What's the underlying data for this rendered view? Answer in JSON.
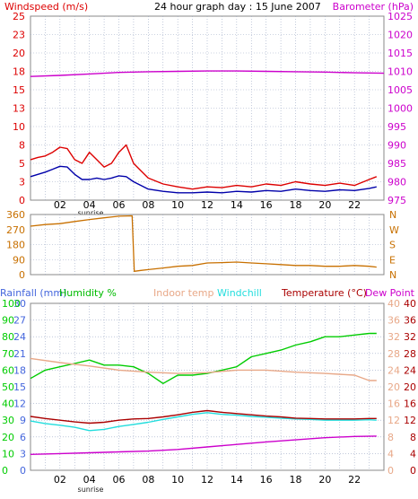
{
  "header": {
    "left_label": "Windspeed (m/s)",
    "title": "24 hour graph day : 15 June 2007",
    "right_label": "Barometer (hPa)"
  },
  "bottom_header": {
    "rainfall_label": "Rainfall (mm)",
    "humidity_label": "Humidity %",
    "indoor_label": "Indoor temp",
    "windchill_label": "Windchill",
    "temperature_label": "Temperature (°C)",
    "dewpoint_label": "Dew Point"
  },
  "sunrise_label": "sunrise",
  "colors": {
    "windspeed": "#dd0000",
    "wind_avg": "#0000aa",
    "barometer": "#cc00cc",
    "direction": "#c87000",
    "humidity": "#00cc00",
    "indoor": "#e8a888",
    "windchill": "#22dddd",
    "temperature": "#aa0000",
    "dewpoint": "#cc00cc",
    "rainfall": "#4466dd",
    "grid": "#9aa7c4"
  },
  "chart_data": [
    {
      "type": "line",
      "title": "24 hour graph day : 15 June 2007",
      "xlabel": "",
      "x_ticks": [
        "02",
        "04",
        "06",
        "08",
        "10",
        "12",
        "14",
        "16",
        "18",
        "20",
        "22"
      ],
      "xlim": [
        0,
        24
      ],
      "ylabel": "Windspeed (m/s)",
      "ylim": [
        0,
        25
      ],
      "y_ticks": [
        0,
        3,
        5,
        8,
        10,
        13,
        15,
        18,
        20,
        23,
        25
      ],
      "y2label": "Barometer (hPa)",
      "y2lim": [
        975,
        1025
      ],
      "y2_ticks": [
        975,
        980,
        985,
        990,
        995,
        1000,
        1005,
        1010,
        1015,
        1020,
        1025
      ],
      "series": [
        {
          "name": "Windspeed",
          "axis": "left",
          "x": [
            0,
            0.5,
            1,
            1.5,
            2,
            2.5,
            3,
            3.5,
            4,
            4.5,
            5,
            5.5,
            6,
            6.5,
            7,
            7.5,
            8,
            9,
            10,
            11,
            12,
            13,
            14,
            15,
            16,
            17,
            18,
            19,
            20,
            21,
            22,
            23,
            23.5
          ],
          "values": [
            5.5,
            5.8,
            6.0,
            6.5,
            7.2,
            7.0,
            5.5,
            5.0,
            6.5,
            5.5,
            4.5,
            5.0,
            6.5,
            7.5,
            5.0,
            4.0,
            3.0,
            2.2,
            1.8,
            1.5,
            1.8,
            1.7,
            2.0,
            1.8,
            2.2,
            2.0,
            2.5,
            2.2,
            2.0,
            2.3,
            2.0,
            2.8,
            3.2
          ]
        },
        {
          "name": "Wind average",
          "axis": "left",
          "x": [
            0,
            0.5,
            1,
            1.5,
            2,
            2.5,
            3,
            3.5,
            4,
            4.5,
            5,
            5.5,
            6,
            6.5,
            7,
            7.5,
            8,
            9,
            10,
            11,
            12,
            13,
            14,
            15,
            16,
            17,
            18,
            19,
            20,
            21,
            22,
            23,
            23.5
          ],
          "values": [
            3.2,
            3.5,
            3.8,
            4.2,
            4.6,
            4.5,
            3.5,
            2.8,
            2.8,
            3.0,
            2.8,
            3.0,
            3.3,
            3.2,
            2.5,
            2.0,
            1.5,
            1.2,
            1.0,
            1.0,
            1.1,
            1.0,
            1.2,
            1.1,
            1.3,
            1.2,
            1.5,
            1.3,
            1.2,
            1.4,
            1.3,
            1.6,
            1.8
          ]
        },
        {
          "name": "Barometer",
          "axis": "right",
          "x": [
            0,
            2,
            4,
            6,
            8,
            10,
            12,
            14,
            16,
            18,
            20,
            22,
            24
          ],
          "values": [
            1008.6,
            1008.9,
            1009.3,
            1009.7,
            1009.9,
            1010.0,
            1010.1,
            1010.1,
            1010.0,
            1009.9,
            1009.8,
            1009.6,
            1009.5
          ]
        }
      ]
    },
    {
      "type": "line",
      "xlim": [
        0,
        24
      ],
      "ylim": [
        0,
        360
      ],
      "y_ticks": [
        0,
        90,
        180,
        270,
        360
      ],
      "y2_ticks": [
        "N",
        "E",
        "S",
        "W",
        "N"
      ],
      "series": [
        {
          "name": "Wind direction",
          "x": [
            0,
            1,
            2,
            3,
            4,
            5,
            6,
            6.9,
            7.05,
            7.5,
            8,
            9,
            10,
            11,
            12,
            13,
            14,
            15,
            16,
            17,
            18,
            19,
            20,
            21,
            22,
            23,
            23.5
          ],
          "values": [
            290,
            300,
            305,
            318,
            330,
            340,
            350,
            352,
            20,
            25,
            30,
            40,
            50,
            55,
            70,
            72,
            75,
            70,
            65,
            60,
            55,
            55,
            50,
            50,
            55,
            50,
            45
          ]
        }
      ]
    },
    {
      "type": "line",
      "xlim": [
        0,
        24
      ],
      "y_left1_label": "Rainfall (mm)",
      "y_left1_ticks": [
        0,
        3,
        6,
        9,
        12,
        15,
        18,
        21,
        24,
        27,
        30
      ],
      "y_left1_lim": [
        0,
        30
      ],
      "y_left2_label": "Humidity %",
      "y_left2_ticks": [
        0,
        10,
        20,
        30,
        40,
        50,
        60,
        70,
        80,
        90,
        100
      ],
      "y_left2_lim": [
        0,
        100
      ],
      "y_right1_ticks": [
        0,
        4,
        8,
        12,
        16,
        20,
        24,
        28,
        32,
        36,
        40
      ],
      "y_right1_lim": [
        0,
        40
      ],
      "y_right2_ticks": [
        0,
        4,
        8,
        12,
        16,
        20,
        24,
        28,
        32,
        36,
        40
      ],
      "y_right2_lim": [
        0,
        40
      ],
      "series": [
        {
          "name": "Humidity %",
          "axis": "humidity",
          "x": [
            0,
            1,
            2,
            3,
            4,
            5,
            6,
            7,
            8,
            9,
            10,
            11,
            12,
            13,
            14,
            15,
            16,
            17,
            18,
            19,
            20,
            21,
            22,
            23,
            23.5
          ],
          "values": [
            55,
            60,
            62,
            64,
            66,
            63,
            63,
            62,
            58,
            52,
            57,
            57,
            58,
            60,
            62,
            68,
            70,
            72,
            75,
            77,
            80,
            80,
            81,
            82,
            82
          ]
        },
        {
          "name": "Indoor temp",
          "axis": "temp",
          "x": [
            0,
            2,
            4,
            6,
            8,
            10,
            12,
            14,
            16,
            18,
            20,
            22,
            23,
            23.5
          ],
          "values": [
            26.8,
            25.8,
            25.0,
            24.0,
            23.5,
            23.2,
            23.4,
            24.0,
            24.0,
            23.5,
            23.2,
            22.8,
            21.5,
            21.5
          ]
        },
        {
          "name": "Windchill",
          "axis": "temp",
          "x": [
            0,
            1,
            2,
            3,
            4,
            5,
            6,
            7,
            8,
            9,
            10,
            11,
            12,
            13,
            14,
            15,
            16,
            17,
            18,
            19,
            20,
            21,
            22,
            23,
            23.5
          ],
          "values": [
            11.8,
            11.2,
            10.8,
            10.3,
            9.5,
            9.8,
            10.5,
            11.0,
            11.5,
            12.2,
            12.8,
            13.4,
            13.8,
            13.4,
            13.2,
            12.9,
            12.7,
            12.5,
            12.3,
            12.2,
            12.0,
            12.0,
            12.0,
            12.1,
            12.0
          ]
        },
        {
          "name": "Temperature",
          "axis": "temp",
          "x": [
            0,
            1,
            2,
            3,
            4,
            5,
            6,
            7,
            8,
            9,
            10,
            11,
            12,
            13,
            14,
            15,
            16,
            17,
            18,
            19,
            20,
            21,
            22,
            23,
            23.5
          ],
          "values": [
            12.9,
            12.4,
            12.0,
            11.6,
            11.3,
            11.5,
            12.0,
            12.3,
            12.4,
            12.8,
            13.3,
            13.9,
            14.3,
            13.9,
            13.6,
            13.3,
            13.0,
            12.8,
            12.5,
            12.4,
            12.3,
            12.3,
            12.3,
            12.4,
            12.4
          ]
        },
        {
          "name": "Dew Point",
          "axis": "temp",
          "x": [
            0,
            2,
            4,
            6,
            8,
            10,
            12,
            14,
            16,
            18,
            20,
            22,
            23.5
          ],
          "values": [
            3.8,
            4.0,
            4.2,
            4.4,
            4.6,
            5.0,
            5.6,
            6.2,
            6.8,
            7.3,
            7.8,
            8.1,
            8.2
          ]
        }
      ]
    }
  ]
}
